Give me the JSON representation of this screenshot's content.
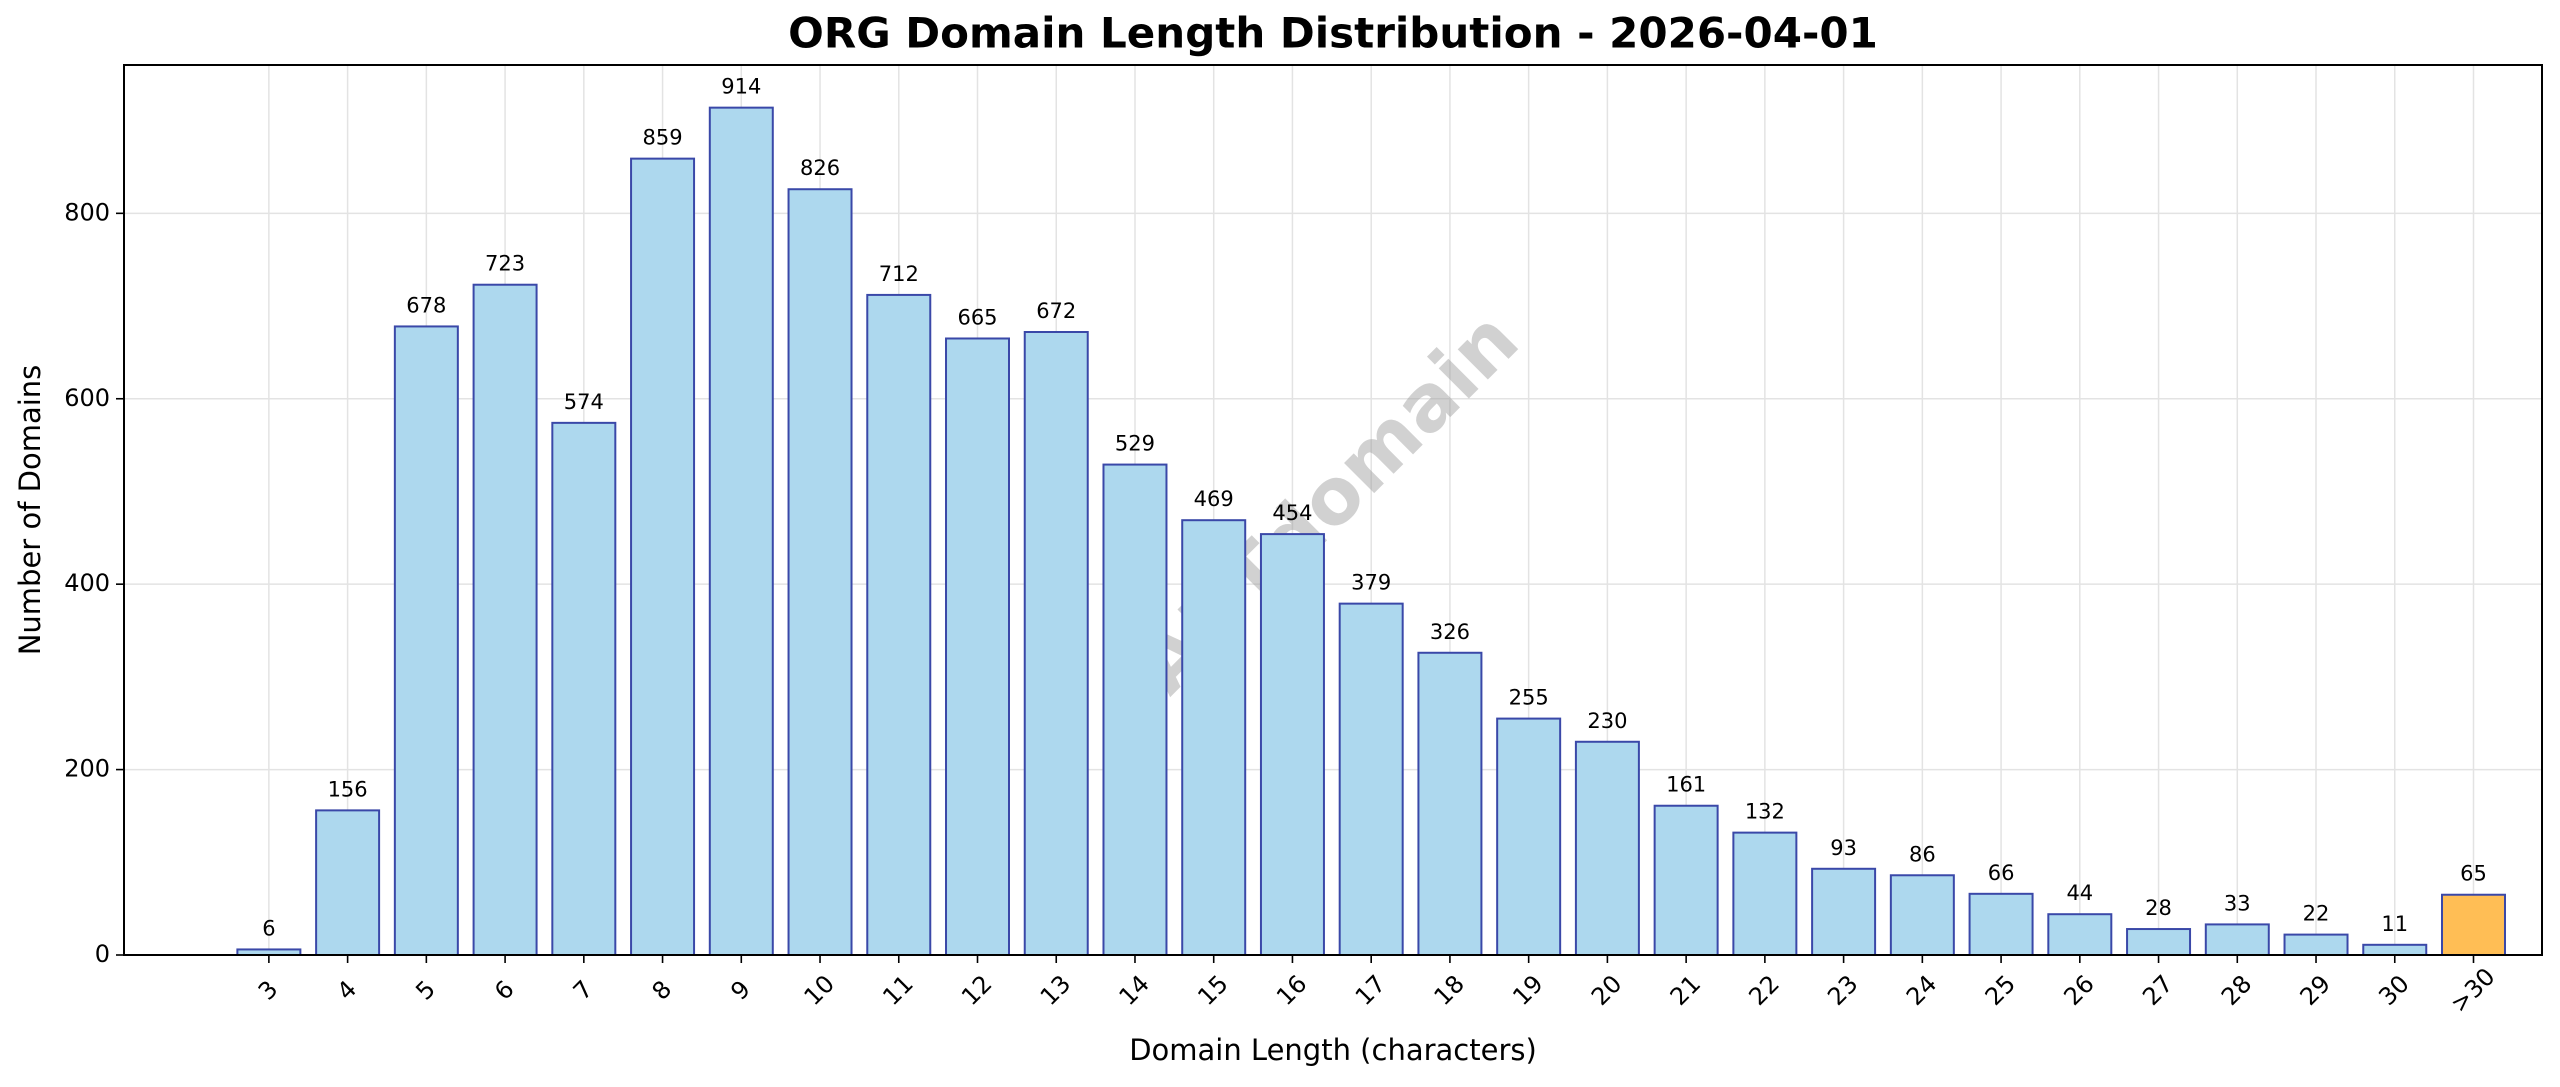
{
  "chart_data": {
    "type": "bar",
    "title": "ORG Domain Length Distribution - 2026-04-01",
    "xlabel": "Domain Length (characters)",
    "ylabel": "Number of Domains",
    "watermark": "ABTdomain",
    "categories": [
      "3",
      "4",
      "5",
      "6",
      "7",
      "8",
      "9",
      "10",
      "11",
      "12",
      "13",
      "14",
      "15",
      "16",
      "17",
      "18",
      "19",
      "20",
      "21",
      "22",
      "23",
      "24",
      "25",
      "26",
      "27",
      "28",
      "29",
      "30",
      ">30"
    ],
    "values": [
      6,
      156,
      678,
      723,
      574,
      859,
      914,
      826,
      712,
      665,
      672,
      529,
      469,
      454,
      379,
      326,
      255,
      230,
      161,
      132,
      93,
      86,
      66,
      44,
      28,
      33,
      22,
      11,
      65
    ],
    "colors": [
      "#add8ee",
      "#add8ee",
      "#add8ee",
      "#add8ee",
      "#add8ee",
      "#add8ee",
      "#add8ee",
      "#add8ee",
      "#add8ee",
      "#add8ee",
      "#add8ee",
      "#add8ee",
      "#add8ee",
      "#add8ee",
      "#add8ee",
      "#add8ee",
      "#add8ee",
      "#add8ee",
      "#add8ee",
      "#add8ee",
      "#add8ee",
      "#add8ee",
      "#add8ee",
      "#add8ee",
      "#add8ee",
      "#add8ee",
      "#add8ee",
      "#add8ee",
      "#ffbe55"
    ],
    "edgecolor": "#3a48a8",
    "ylim": [
      0,
      960
    ],
    "yticks": [
      0,
      200,
      400,
      600,
      800
    ],
    "grid": true
  }
}
